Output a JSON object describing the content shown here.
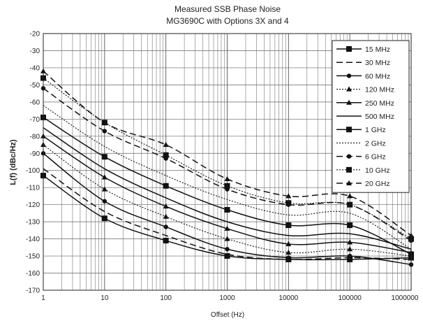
{
  "chart_data": {
    "type": "line",
    "title": "Measured SSB Phase Noise",
    "subtitle": "MG3690C with Options 3X and 4",
    "xlabel": "Offset (Hz)",
    "ylabel": "L(f) (dBc/Hz)",
    "x_scale": "log",
    "xlim": [
      1,
      1000000
    ],
    "ylim": [
      -170,
      -20
    ],
    "grid": true,
    "legend_position": "top-right",
    "x_ticks": [
      "1",
      "10",
      "100",
      "1000",
      "10000",
      "100000",
      "1000000"
    ],
    "y_ticks": [
      "-20",
      "-30",
      "-40",
      "-50",
      "-60",
      "-70",
      "-80",
      "-90",
      "-100",
      "-110",
      "-120",
      "-130",
      "-140",
      "-150",
      "-160",
      "-170"
    ],
    "x": [
      1,
      10,
      100,
      1000,
      10000,
      100000,
      1000000
    ],
    "series": [
      {
        "name": "15 MHz",
        "style": "solid",
        "marker": "square",
        "values": [
          -103,
          -128,
          -141,
          -150,
          -152,
          -152,
          -151
        ]
      },
      {
        "name": "30 MHz",
        "style": "dashed",
        "marker": "none",
        "values": [
          -99,
          -124,
          -138,
          -149,
          -152,
          -151,
          -152
        ]
      },
      {
        "name": "60 MHz",
        "style": "solid",
        "marker": "circle",
        "values": [
          -90,
          -118,
          -133,
          -146,
          -151,
          -150,
          -155
        ]
      },
      {
        "name": "120 MHz",
        "style": "dotted",
        "marker": "triangle",
        "values": [
          -85,
          -111,
          -127,
          -140,
          -148,
          -146,
          -150
        ]
      },
      {
        "name": "250 MHz",
        "style": "solid",
        "marker": "triangle",
        "values": [
          -80,
          -104,
          -121,
          -134,
          -143,
          -142,
          -148
        ]
      },
      {
        "name": "500 MHz",
        "style": "solid",
        "marker": "none",
        "values": [
          -75,
          -99,
          -116,
          -130,
          -138,
          -137,
          -146
        ]
      },
      {
        "name": "1 GHz",
        "style": "solid",
        "marker": "square",
        "values": [
          -69,
          -92,
          -109,
          -123,
          -132,
          -132,
          -149
        ]
      },
      {
        "name": "2 GHz",
        "style": "dotted",
        "marker": "none",
        "values": [
          -62,
          -86,
          -103,
          -117,
          -126,
          -125,
          -146
        ]
      },
      {
        "name": "6 GHz",
        "style": "dashed",
        "marker": "circle",
        "values": [
          -52,
          -77,
          -93,
          -111,
          -120,
          -120,
          -141
        ]
      },
      {
        "name": "10 GHz",
        "style": "dotted",
        "marker": "square",
        "values": [
          -46,
          -72,
          -91,
          -109,
          -119,
          -120,
          -140
        ]
      },
      {
        "name": "20 GHz",
        "style": "dashed",
        "marker": "triangle",
        "values": [
          -42,
          -72,
          -85,
          -105,
          -115,
          -115,
          -138
        ]
      }
    ]
  }
}
